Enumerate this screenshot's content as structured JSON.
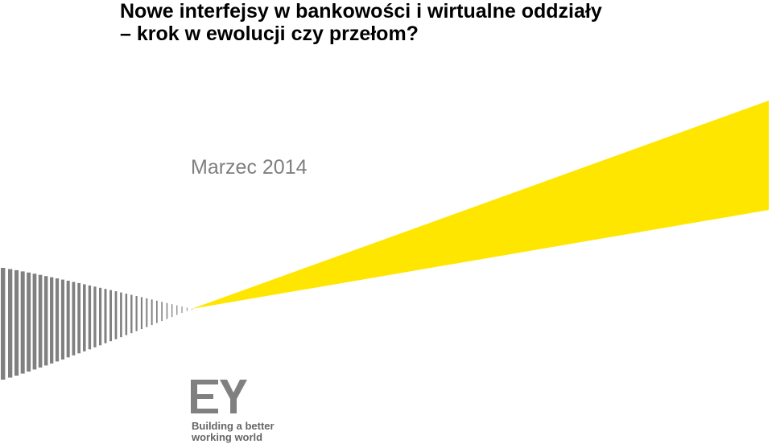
{
  "slide": {
    "title_line1": "Nowe interfejsy w bankowości i wirtualne oddziały",
    "title_line2": "– krok w ewolucji czy przełom?",
    "date": "Marzec 2014"
  },
  "logo": {
    "wordmark": "EY",
    "tagline_line1": "Building a better",
    "tagline_line2": "working world"
  },
  "colors": {
    "beam_yellow": "#ffe600",
    "stripes_gray": "#808080",
    "date_gray": "#7f7f7f"
  }
}
